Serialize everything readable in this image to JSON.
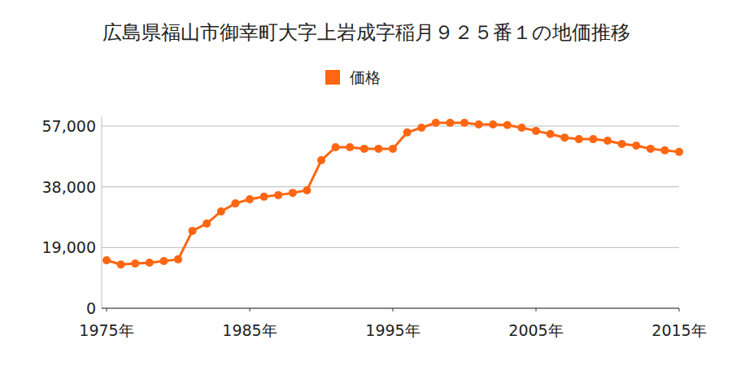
{
  "chart_data": {
    "type": "line",
    "title": "広島県福山市御幸町大字上岩成字稲月９２５番１の地価推移",
    "x": [
      1975,
      1976,
      1977,
      1978,
      1979,
      1980,
      1981,
      1982,
      1983,
      1984,
      1985,
      1986,
      1987,
      1988,
      1989,
      1990,
      1991,
      1992,
      1993,
      1994,
      1995,
      1996,
      1997,
      1998,
      1999,
      2000,
      2001,
      2002,
      2003,
      2004,
      2005,
      2006,
      2007,
      2008,
      2009,
      2010,
      2011,
      2012,
      2013,
      2014,
      2015
    ],
    "series": [
      {
        "name": "価格",
        "color": "#ff6611",
        "marker": "circle",
        "values": [
          15000,
          13700,
          14000,
          14250,
          14750,
          15300,
          24200,
          26500,
          30300,
          32800,
          34100,
          34900,
          35400,
          36100,
          36900,
          46300,
          50400,
          50400,
          49900,
          49900,
          49900,
          55000,
          56500,
          58000,
          58000,
          58000,
          57500,
          57500,
          57300,
          56500,
          55500,
          54500,
          53400,
          52900,
          52900,
          52400,
          51400,
          50900,
          49900,
          49400,
          48900
        ]
      }
    ],
    "xlim": [
      1975,
      2015
    ],
    "xticks": [
      {
        "value": 1975,
        "label": "1975年"
      },
      {
        "value": 1985,
        "label": "1985年"
      },
      {
        "value": 1995,
        "label": "1995年"
      },
      {
        "value": 2005,
        "label": "2005年"
      },
      {
        "value": 2015,
        "label": "2015年"
      }
    ],
    "ylim": [
      0,
      60000
    ],
    "yticks": [
      0,
      {
        "value": 19000,
        "label": "19,000"
      },
      {
        "value": 38000,
        "label": "38,000"
      },
      {
        "value": 57000,
        "label": "57,000"
      }
    ],
    "grid": true,
    "legend": "top"
  }
}
